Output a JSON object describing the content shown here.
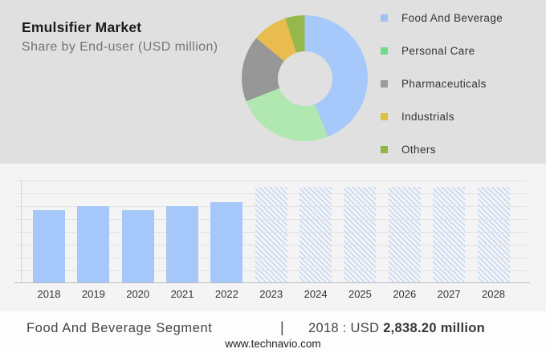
{
  "header": {
    "title": "Emulsifier Market",
    "subtitle": "Share by End-user (USD million)"
  },
  "legend": {
    "items": [
      {
        "label": "Food And Beverage",
        "color": "#a0c0f5"
      },
      {
        "label": "Personal Care",
        "color": "#6edd8a"
      },
      {
        "label": "Pharmaceuticals",
        "color": "#9b9b9b"
      },
      {
        "label": "Industrials",
        "color": "#e0c13e"
      },
      {
        "label": "Others",
        "color": "#8fb542"
      }
    ]
  },
  "chart_data": [
    {
      "type": "pie",
      "subtype": "donut",
      "title": "Share by End-user (USD million)",
      "labels": [
        "Food And Beverage",
        "Personal Care",
        "Pharmaceuticals",
        "Industrials",
        "Others"
      ],
      "values_percent": [
        44,
        25,
        17,
        9,
        5
      ],
      "colors": [
        "#a7c8fa",
        "#b1e8b2",
        "#979797",
        "#e8bc4e",
        "#95b74c"
      ],
      "donut_hole_ratio": 0.43,
      "legend_position": "right"
    },
    {
      "type": "bar",
      "categories": [
        "2018",
        "2019",
        "2020",
        "2021",
        "2022",
        "2023",
        "2024",
        "2025",
        "2026",
        "2027",
        "2028"
      ],
      "values": [
        2838.2,
        2990,
        2840,
        2990,
        3150,
        null,
        null,
        null,
        null,
        null,
        null
      ],
      "forecast_start": "2023",
      "ylim": [
        0,
        4000
      ],
      "gridline_step": 500,
      "bar_color": "#a6c7f9",
      "forecast_hatch_color": "#c0d4f7",
      "grid": true
    }
  ],
  "footer": {
    "segment_label": "Food And Beverage Segment",
    "separator": "|",
    "stat_prefix": "2018 : USD ",
    "stat_value": "2,838.20 million",
    "website": "www.technavio.com"
  }
}
